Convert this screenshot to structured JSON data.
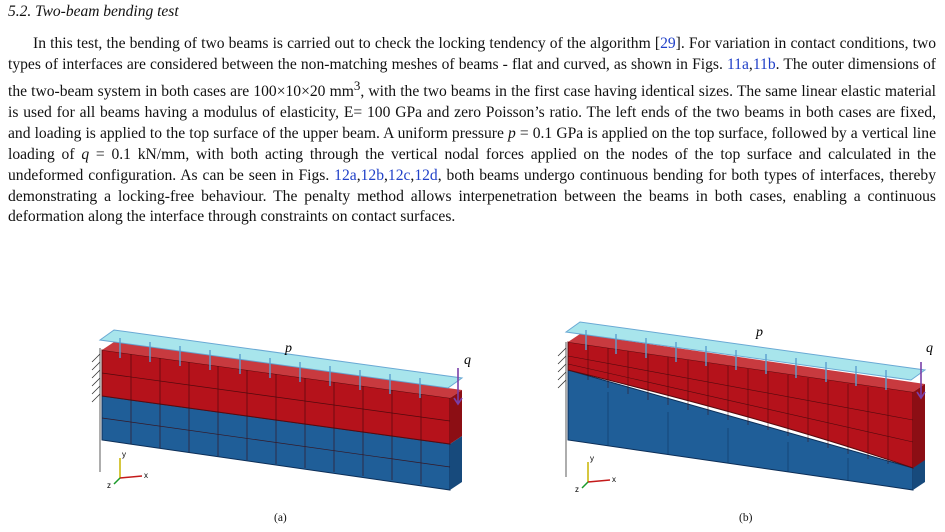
{
  "section": {
    "heading": "5.2.  Two-beam bending test"
  },
  "paragraph": {
    "t1": "In this test, the bending of two beams is carried out to check the locking tendency of the algorithm [",
    "ref29": "29",
    "t2": "].  For variation in contact conditions, two types of interfaces are considered between the non-matching meshes of beams - flat and curved, as shown in Figs. ",
    "ref11a": "11a",
    "sep1": ",",
    "ref11b": "11b",
    "t3": ".  The outer dimensions of the two-beam system in both cases are 100×10×20 mm",
    "sup3": "3",
    "t4": ", with the two beams in the first case having identical sizes. The same linear elastic material is used for all beams having a modulus of elasticity, E= 100 GPa and zero Poisson’s ratio. The left ends of the two beams in both cases are fixed, and loading is applied to the top surface of the upper beam. A uniform pressure ",
    "p": "p",
    "t5": " = 0.1 GPa is applied on the top surface, followed by a vertical line loading of ",
    "q": "q",
    "t6": " = 0.1 kN/mm, with both acting through the vertical nodal forces applied on the nodes of the top surface and calculated in the undeformed configuration. As can be seen in Figs. ",
    "ref12a": "12a",
    "sep2": ",",
    "ref12b": "12b",
    "sep3": ",",
    "ref12c": "12c",
    "sep4": ",",
    "ref12d": "12d",
    "t7": ", both beams undergo continuous bending for both types of interfaces, thereby demonstrating a locking-free behaviour.  The penalty method allows interpenetration between the beams in both cases, enabling a continuous deformation along the interface through constraints on contact surfaces."
  },
  "figure_a": {
    "label_p": "p",
    "label_q": "q",
    "axis_x": "x",
    "axis_y": "y",
    "axis_z": "z",
    "caption": "(a)"
  },
  "figure_b": {
    "label_p": "p",
    "label_q": "q",
    "axis_x": "x",
    "axis_y": "y",
    "axis_z": "z",
    "caption": "(b)"
  },
  "colors": {
    "upper_beam": "#b5121b",
    "lower_beam": "#1f5e98",
    "load_band": "#9fe3ea",
    "arrows": "#5aa0d0",
    "line_load": "#7a3fa8",
    "link": "#2040c8"
  }
}
